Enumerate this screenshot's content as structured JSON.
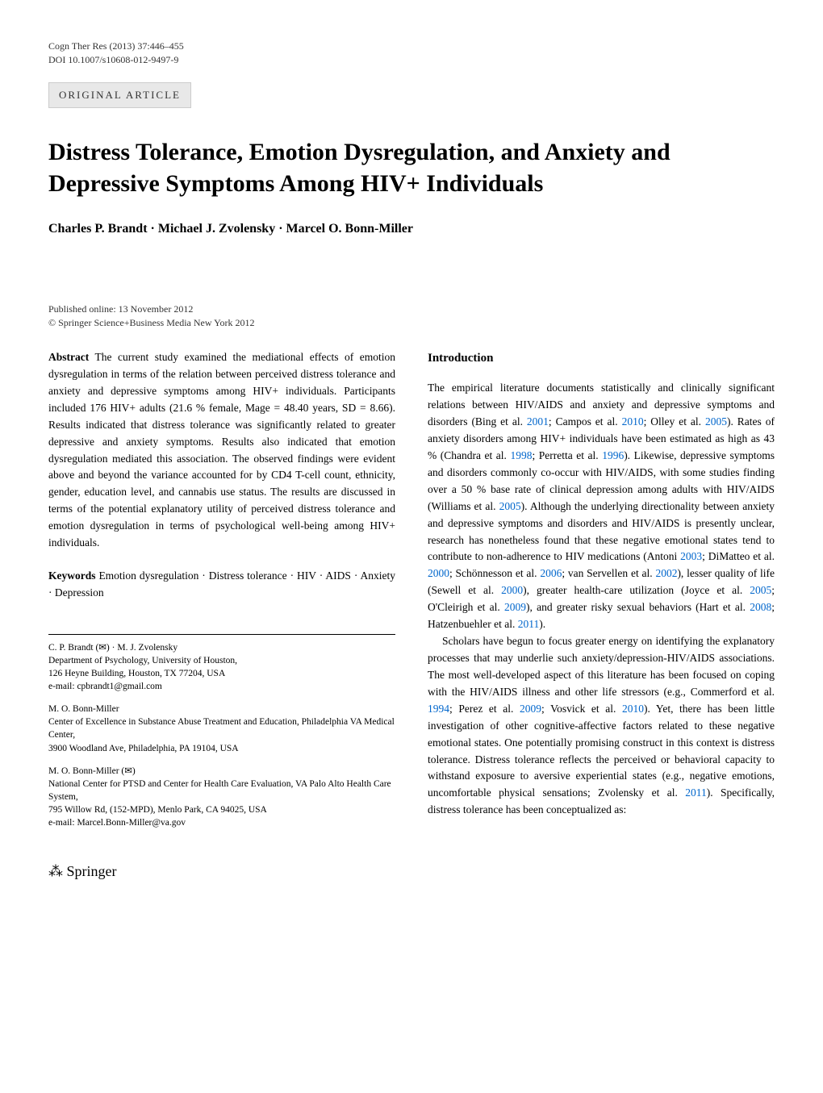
{
  "header": {
    "journal_ref": "Cogn Ther Res (2013) 37:446–455",
    "doi": "DOI 10.1007/s10608-012-9497-9",
    "article_type": "ORIGINAL ARTICLE"
  },
  "title": "Distress Tolerance, Emotion Dysregulation, and Anxiety and Depressive Symptoms Among HIV+ Individuals",
  "authors": "Charles P. Brandt · Michael J. Zvolensky · Marcel O. Bonn-Miller",
  "pub_info": {
    "published": "Published online: 13 November 2012",
    "copyright": "© Springer Science+Business Media New York 2012"
  },
  "abstract": {
    "label": "Abstract",
    "text": "The current study examined the mediational effects of emotion dysregulation in terms of the relation between perceived distress tolerance and anxiety and depressive symptoms among HIV+ individuals. Participants included 176 HIV+ adults (21.6 % female, Mage = 48.40 years, SD = 8.66). Results indicated that distress tolerance was significantly related to greater depressive and anxiety symptoms. Results also indicated that emotion dysregulation mediated this association. The observed findings were evident above and beyond the variance accounted for by CD4 T-cell count, ethnicity, gender, education level, and cannabis use status. The results are discussed in terms of the potential explanatory utility of perceived distress tolerance and emotion dysregulation in terms of psychological well-being among HIV+ individuals."
  },
  "keywords": {
    "label": "Keywords",
    "text": "Emotion dysregulation · Distress tolerance · HIV · AIDS · Anxiety · Depression"
  },
  "intro": {
    "heading": "Introduction",
    "para1_pre": "The empirical literature documents statistically and clinically significant relations between HIV/AIDS and anxiety and depressive symptoms and disorders (Bing et al. ",
    "ref1": "2001",
    "para1_mid1": "; Campos et al. ",
    "ref2": "2010",
    "para1_mid2": "; Olley et al. ",
    "ref3": "2005",
    "para1_mid3": "). Rates of anxiety disorders among HIV+ individuals have been estimated as high as 43 % (Chandra et al. ",
    "ref4": "1998",
    "para1_mid4": "; Perretta et al. ",
    "ref5": "1996",
    "para1_mid5": "). Likewise, depressive symptoms and disorders commonly co-occur with HIV/AIDS, with some studies finding over a 50 % base rate of clinical depression among adults with HIV/AIDS (Williams et al. ",
    "ref6": "2005",
    "para1_mid6": "). Although the underlying directionality between anxiety and depressive symptoms and disorders and HIV/AIDS is presently unclear, research has nonetheless found that these negative emotional states tend to contribute to non-adherence to HIV medications (Antoni ",
    "ref7": "2003",
    "para1_mid7": "; DiMatteo et al. ",
    "ref8": "2000",
    "para1_mid8": "; Schönnesson et al. ",
    "ref9": "2006",
    "para1_mid9": "; van Servellen et al. ",
    "ref10": "2002",
    "para1_mid10": "), lesser quality of life (Sewell et al. ",
    "ref11": "2000",
    "para1_mid11": "), greater health-care utilization (Joyce et al. ",
    "ref12": "2005",
    "para1_mid12": "; O'Cleirigh et al. ",
    "ref13": "2009",
    "para1_mid13": "), and greater risky sexual behaviors (Hart et al. ",
    "ref14": "2008",
    "para1_mid14": "; Hatzenbuehler et al. ",
    "ref15": "2011",
    "para1_end": ").",
    "para2_pre": "Scholars have begun to focus greater energy on identifying the explanatory processes that may underlie such anxiety/depression-HIV/AIDS associations. The most well-developed aspect of this literature has been focused on coping with the HIV/AIDS illness and other life stressors (e.g., Commerford et al. ",
    "ref16": "1994",
    "para2_mid1": "; Perez et al. ",
    "ref17": "2009",
    "para2_mid2": "; Vosvick et al. ",
    "ref18": "2010",
    "para2_mid3": "). Yet, there has been little investigation of other cognitive-affective factors related to these negative emotional states. One potentially promising construct in this context is distress tolerance. Distress tolerance reflects the perceived or behavioral capacity to withstand exposure to aversive experiential states (e.g., negative emotions, uncomfortable physical sensations; Zvolensky et al. ",
    "ref19": "2011",
    "para2_end": "). Specifically, distress tolerance has been conceptualized as:"
  },
  "affiliations": {
    "block1": {
      "names": "C. P. Brandt (✉) · M. J. Zvolensky",
      "dept": "Department of Psychology, University of Houston,",
      "addr": "126 Heyne Building, Houston, TX 77204, USA",
      "email": "e-mail: cpbrandt1@gmail.com"
    },
    "block2": {
      "names": "M. O. Bonn-Miller",
      "dept": "Center of Excellence in Substance Abuse Treatment and Education, Philadelphia VA Medical Center,",
      "addr": "3900 Woodland Ave, Philadelphia, PA 19104, USA"
    },
    "block3": {
      "names": "M. O. Bonn-Miller (✉)",
      "dept": "National Center for PTSD and Center for Health Care Evaluation, VA Palo Alto Health Care System,",
      "addr": "795 Willow Rd, (152-MPD), Menlo Park, CA 94025, USA",
      "email": "e-mail: Marcel.Bonn-Miller@va.gov"
    }
  },
  "footer": {
    "springer": "Springer"
  }
}
